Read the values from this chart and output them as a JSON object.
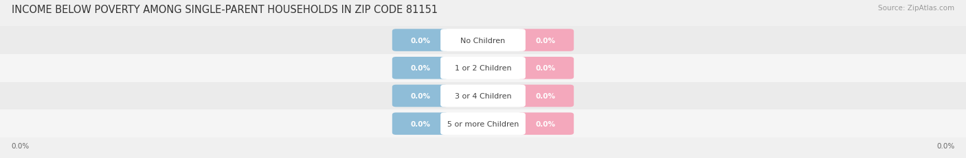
{
  "title": "INCOME BELOW POVERTY AMONG SINGLE-PARENT HOUSEHOLDS IN ZIP CODE 81151",
  "source": "Source: ZipAtlas.com",
  "categories": [
    "No Children",
    "1 or 2 Children",
    "3 or 4 Children",
    "5 or more Children"
  ],
  "father_values": [
    "0.0%",
    "0.0%",
    "0.0%",
    "0.0%"
  ],
  "mother_values": [
    "0.0%",
    "0.0%",
    "0.0%",
    "0.0%"
  ],
  "father_color": "#8fbdd8",
  "mother_color": "#f4a8bc",
  "row_colors": [
    "#ebebeb",
    "#f5f5f5",
    "#ebebeb",
    "#f5f5f5"
  ],
  "center_label_color": "#444444",
  "title_fontsize": 10.5,
  "source_fontsize": 7.5,
  "axis_label_left": "0.0%",
  "axis_label_right": "0.0%",
  "background_color": "#f0f0f0"
}
